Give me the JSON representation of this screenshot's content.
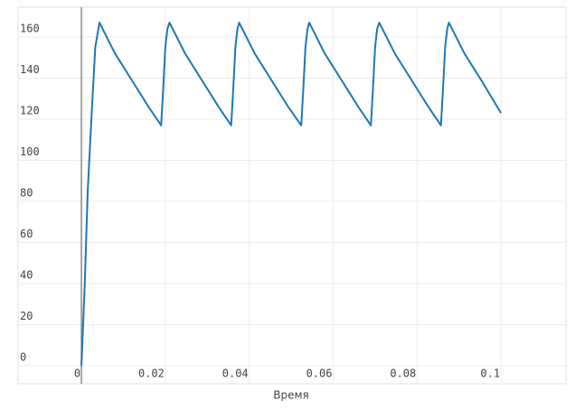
{
  "chart_data": {
    "type": "line",
    "x_label": "Время",
    "x": [
      0,
      0.0008,
      0.0015,
      0.0025,
      0.0033,
      0.0043,
      0.008,
      0.012,
      0.016,
      0.019,
      0.0195,
      0.02,
      0.0205,
      0.021,
      0.0247,
      0.0287,
      0.0327,
      0.0357,
      0.0362,
      0.0367,
      0.0372,
      0.0376,
      0.0413,
      0.0453,
      0.0493,
      0.0524,
      0.0529,
      0.0534,
      0.0539,
      0.0543,
      0.058,
      0.062,
      0.066,
      0.069,
      0.0695,
      0.07,
      0.0705,
      0.071,
      0.0747,
      0.0787,
      0.0827,
      0.0857,
      0.0862,
      0.0867,
      0.0872,
      0.0876,
      0.0913,
      0.0953,
      0.1
    ],
    "values": [
      0,
      40,
      85,
      125,
      155,
      167,
      152,
      139,
      126,
      117,
      135,
      155,
      164,
      167,
      152,
      139,
      126,
      117,
      135,
      155,
      164,
      167,
      152,
      139,
      126,
      117,
      135,
      155,
      164,
      167,
      152,
      139,
      126,
      117,
      135,
      155,
      164,
      167,
      152,
      139,
      126,
      117,
      135,
      155,
      164,
      167,
      152,
      139,
      123
    ],
    "color": "#1f77b4",
    "xlim": [
      -0.0151,
      0.1155
    ],
    "xticks": [
      0,
      0.02,
      0.04,
      0.06,
      0.08,
      0.1
    ],
    "ylim": [
      -8.8,
      174.5
    ],
    "yticks": [
      0,
      20,
      40,
      60,
      80,
      100,
      120,
      140,
      160
    ],
    "grid": true
  }
}
